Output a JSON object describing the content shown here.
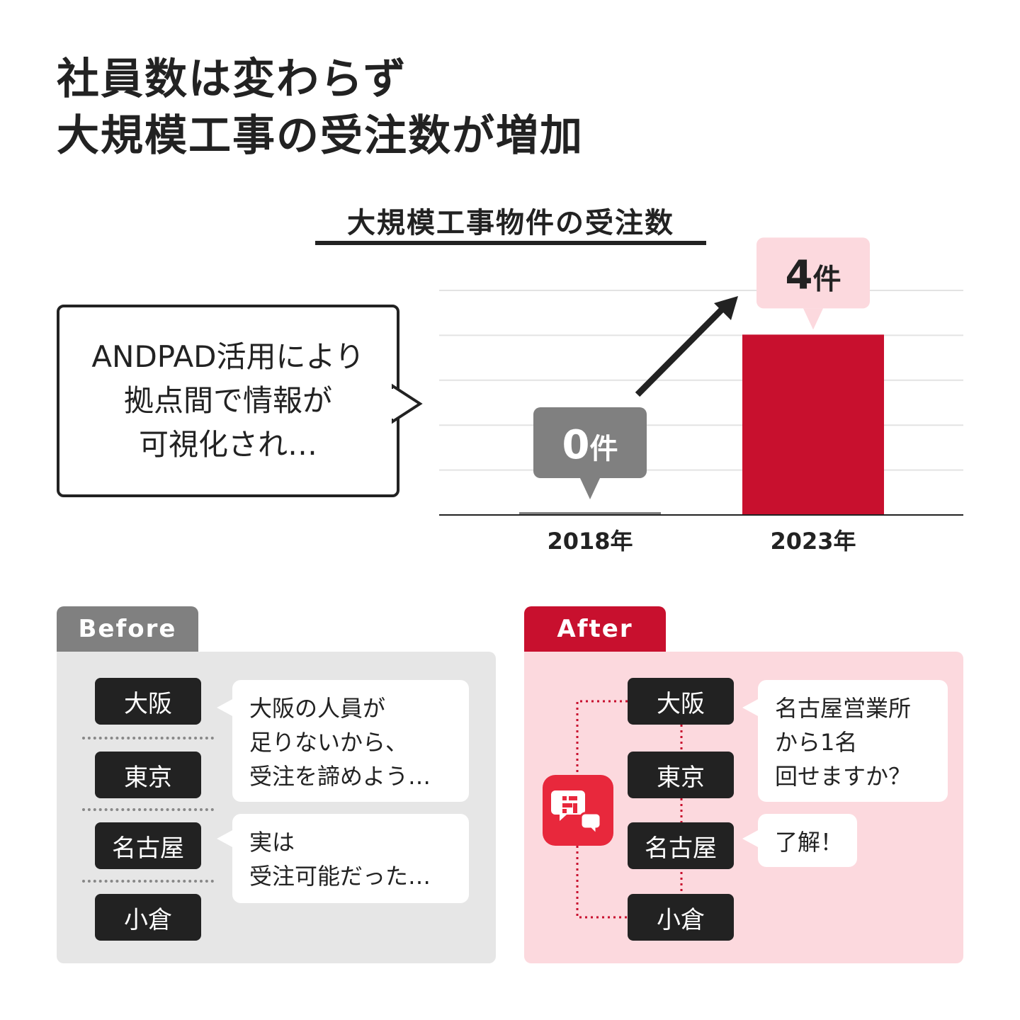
{
  "headline": {
    "line1": "社員数は変わらず",
    "line2": "大規模工事の受注数が増加"
  },
  "callout": {
    "lines": [
      "ANDPAD活用により",
      "拠点間で情報が",
      "可視化され…"
    ]
  },
  "chart_data": {
    "type": "bar",
    "title": "大規模工事物件の受注数",
    "categories": [
      "2018年",
      "2023年"
    ],
    "values": [
      0,
      4
    ],
    "value_labels": [
      "0",
      "4"
    ],
    "unit": "件",
    "ylim": [
      0,
      5
    ],
    "grid": true,
    "colors": {
      "bar_2018": "#808080",
      "bar_2023": "#c8102e",
      "label_2018": "#808080",
      "label_2023": "#fcd9de"
    }
  },
  "before": {
    "tab_label": "Before",
    "cities": [
      "大阪",
      "東京",
      "名古屋",
      "小倉"
    ],
    "bubble1": [
      "大阪の人員が",
      "足りないから、",
      "受注を諦めよう…"
    ],
    "bubble2": [
      "実は",
      "受注可能だった…"
    ]
  },
  "after": {
    "tab_label": "After",
    "cities": [
      "大阪",
      "東京",
      "名古屋",
      "小倉"
    ],
    "bubble1": [
      "名古屋営業所",
      "から1名",
      "回せますか？"
    ],
    "bubble2": [
      "了解！"
    ]
  },
  "colors": {
    "accent": "#c8102e",
    "gray": "#808080",
    "pink_bg": "#fcd9de",
    "gray_bg": "#e6e6e6",
    "dark": "#222222"
  },
  "icons": {
    "app": "andpad-chat-icon",
    "arrow": "trend-up-arrow-icon"
  }
}
